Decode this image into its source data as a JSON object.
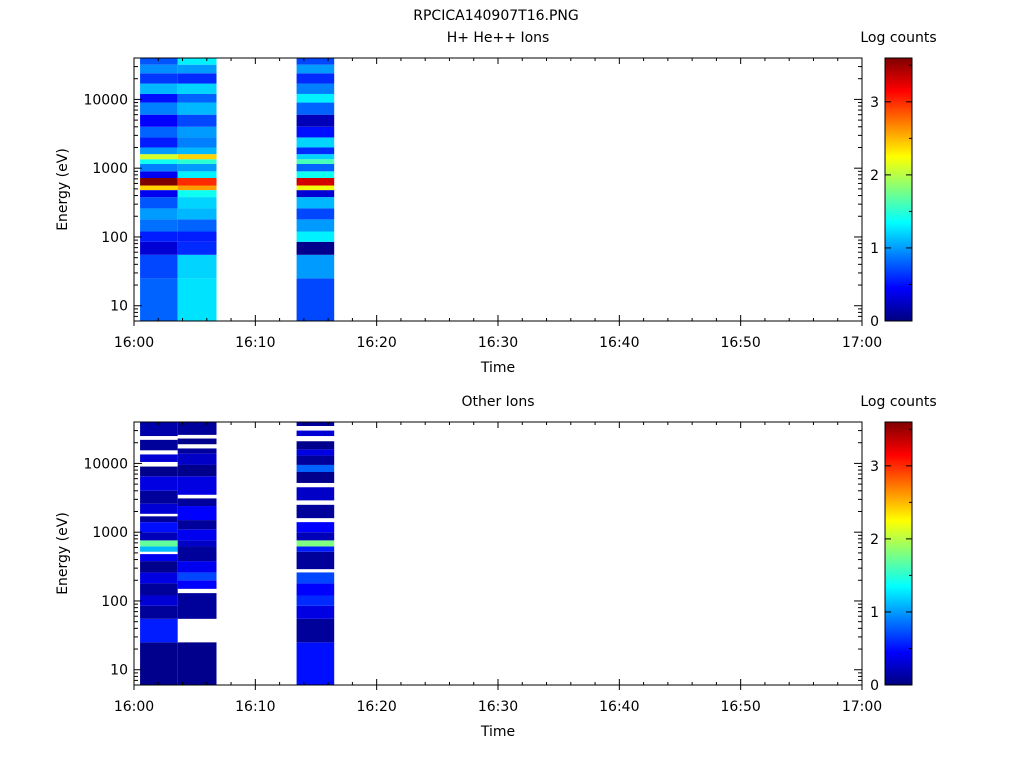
{
  "figure_title": "RPCICA140907T16.PNG",
  "colormap": [
    "#00007f",
    "#0000ff",
    "#007fff",
    "#00ffff",
    "#7fff7f",
    "#ffff00",
    "#ff7f00",
    "#ff0000",
    "#7f0000"
  ],
  "chart_data": [
    {
      "type": "heatmap",
      "title": "H+ He++ Ions",
      "xlabel": "Time",
      "ylabel": "Energy (eV)",
      "yscale": "log",
      "ylim": [
        6,
        40000
      ],
      "xlim": [
        "16:00",
        "17:00"
      ],
      "x_ticks": [
        "16:00",
        "16:10",
        "16:20",
        "16:30",
        "16:40",
        "16:50",
        "17:00"
      ],
      "y_ticks": [
        "10",
        "100",
        "1000",
        "10000"
      ],
      "colorbar": {
        "label": "Log counts",
        "range": [
          0,
          3.6
        ],
        "ticks": [
          "0",
          "1",
          "2",
          "3"
        ]
      },
      "columns": [
        {
          "start": "16:00.5",
          "end": "16:03.6",
          "bins": [
            {
              "lo": 6,
              "hi": 25,
              "v": 0.8
            },
            {
              "lo": 25,
              "hi": 55,
              "v": 0.7
            },
            {
              "lo": 55,
              "hi": 85,
              "v": 0.3
            },
            {
              "lo": 85,
              "hi": 120,
              "v": 0.55
            },
            {
              "lo": 120,
              "hi": 180,
              "v": 0.85
            },
            {
              "lo": 180,
              "hi": 260,
              "v": 1.0
            },
            {
              "lo": 260,
              "hi": 380,
              "v": 0.75
            },
            {
              "lo": 380,
              "hi": 480,
              "v": 0.4
            },
            {
              "lo": 480,
              "hi": 560,
              "v": 2.4
            },
            {
              "lo": 560,
              "hi": 720,
              "v": 3.6
            },
            {
              "lo": 720,
              "hi": 900,
              "v": 0.4
            },
            {
              "lo": 900,
              "hi": 1150,
              "v": 0.9
            },
            {
              "lo": 1150,
              "hi": 1350,
              "v": 1.4
            },
            {
              "lo": 1350,
              "hi": 1600,
              "v": 2.1
            },
            {
              "lo": 1600,
              "hi": 2000,
              "v": 1.0
            },
            {
              "lo": 2000,
              "hi": 2800,
              "v": 0.55
            },
            {
              "lo": 2800,
              "hi": 4000,
              "v": 0.8
            },
            {
              "lo": 4000,
              "hi": 6000,
              "v": 0.45
            },
            {
              "lo": 6000,
              "hi": 9000,
              "v": 0.9
            },
            {
              "lo": 9000,
              "hi": 12000,
              "v": 0.5
            },
            {
              "lo": 12000,
              "hi": 17000,
              "v": 1.1
            },
            {
              "lo": 17000,
              "hi": 24000,
              "v": 0.65
            },
            {
              "lo": 24000,
              "hi": 32000,
              "v": 0.95
            },
            {
              "lo": 32000,
              "hi": 40000,
              "v": 0.75
            }
          ]
        },
        {
          "start": "16:03.6",
          "end": "16:06.8",
          "bins": [
            {
              "lo": 6,
              "hi": 25,
              "v": 1.25
            },
            {
              "lo": 25,
              "hi": 55,
              "v": 1.2
            },
            {
              "lo": 55,
              "hi": 85,
              "v": 0.6
            },
            {
              "lo": 85,
              "hi": 120,
              "v": 0.55
            },
            {
              "lo": 120,
              "hi": 180,
              "v": 0.8
            },
            {
              "lo": 180,
              "hi": 260,
              "v": 1.1
            },
            {
              "lo": 260,
              "hi": 380,
              "v": 1.2
            },
            {
              "lo": 380,
              "hi": 480,
              "v": 1.4
            },
            {
              "lo": 480,
              "hi": 560,
              "v": 2.6
            },
            {
              "lo": 560,
              "hi": 720,
              "v": 3.0
            },
            {
              "lo": 720,
              "hi": 900,
              "v": 1.3
            },
            {
              "lo": 900,
              "hi": 1150,
              "v": 1.0
            },
            {
              "lo": 1150,
              "hi": 1350,
              "v": 1.5
            },
            {
              "lo": 1350,
              "hi": 1600,
              "v": 2.4
            },
            {
              "lo": 1600,
              "hi": 2000,
              "v": 1.1
            },
            {
              "lo": 2000,
              "hi": 2800,
              "v": 0.9
            },
            {
              "lo": 2800,
              "hi": 4000,
              "v": 1.0
            },
            {
              "lo": 4000,
              "hi": 6000,
              "v": 0.7
            },
            {
              "lo": 6000,
              "hi": 9000,
              "v": 1.1
            },
            {
              "lo": 9000,
              "hi": 12000,
              "v": 0.8
            },
            {
              "lo": 12000,
              "hi": 17000,
              "v": 1.2
            },
            {
              "lo": 17000,
              "hi": 24000,
              "v": 0.6
            },
            {
              "lo": 24000,
              "hi": 32000,
              "v": 1.0
            },
            {
              "lo": 32000,
              "hi": 40000,
              "v": 1.3
            }
          ]
        },
        {
          "start": "16:13.4",
          "end": "16:16.5",
          "bins": [
            {
              "lo": 6,
              "hi": 25,
              "v": 0.7
            },
            {
              "lo": 25,
              "hi": 55,
              "v": 1.0
            },
            {
              "lo": 55,
              "hi": 85,
              "v": 0.05
            },
            {
              "lo": 85,
              "hi": 120,
              "v": 1.3
            },
            {
              "lo": 120,
              "hi": 180,
              "v": 1.0
            },
            {
              "lo": 180,
              "hi": 260,
              "v": 0.7
            },
            {
              "lo": 260,
              "hi": 380,
              "v": 1.1
            },
            {
              "lo": 380,
              "hi": 480,
              "v": 0.3
            },
            {
              "lo": 480,
              "hi": 560,
              "v": 2.2
            },
            {
              "lo": 560,
              "hi": 720,
              "v": 3.3
            },
            {
              "lo": 720,
              "hi": 900,
              "v": 1.4
            },
            {
              "lo": 900,
              "hi": 1150,
              "v": 0.8
            },
            {
              "lo": 1150,
              "hi": 1350,
              "v": 1.6
            },
            {
              "lo": 1350,
              "hi": 1600,
              "v": 1.2
            },
            {
              "lo": 1600,
              "hi": 2000,
              "v": 0.6
            },
            {
              "lo": 2000,
              "hi": 2800,
              "v": 1.2
            },
            {
              "lo": 2800,
              "hi": 4000,
              "v": 0.5
            },
            {
              "lo": 4000,
              "hi": 6000,
              "v": 0.2
            },
            {
              "lo": 6000,
              "hi": 9000,
              "v": 0.8
            },
            {
              "lo": 9000,
              "hi": 12000,
              "v": 1.3
            },
            {
              "lo": 12000,
              "hi": 17000,
              "v": 0.9
            },
            {
              "lo": 17000,
              "hi": 24000,
              "v": 0.6
            },
            {
              "lo": 24000,
              "hi": 32000,
              "v": 1.0
            },
            {
              "lo": 32000,
              "hi": 40000,
              "v": 0.7
            }
          ]
        }
      ]
    },
    {
      "type": "heatmap",
      "title": "Other Ions",
      "xlabel": "Time",
      "ylabel": "Energy (eV)",
      "yscale": "log",
      "ylim": [
        6,
        40000
      ],
      "xlim": [
        "16:00",
        "17:00"
      ],
      "x_ticks": [
        "16:00",
        "16:10",
        "16:20",
        "16:30",
        "16:40",
        "16:50",
        "17:00"
      ],
      "y_ticks": [
        "10",
        "100",
        "1000",
        "10000"
      ],
      "colorbar": {
        "label": "Log counts",
        "range": [
          0,
          3.6
        ],
        "ticks": [
          "0",
          "1",
          "2",
          "3"
        ]
      },
      "columns": [
        {
          "start": "16:00.5",
          "end": "16:03.6",
          "bins": [
            {
              "lo": 6,
              "hi": 25,
              "v": 0.05
            },
            {
              "lo": 25,
              "hi": 55,
              "v": 0.55
            },
            {
              "lo": 55,
              "hi": 85,
              "v": 0.1
            },
            {
              "lo": 85,
              "hi": 120,
              "v": 0.3
            },
            {
              "lo": 120,
              "hi": 180,
              "v": 0.1
            },
            {
              "lo": 180,
              "hi": 260,
              "v": 0.35
            },
            {
              "lo": 260,
              "hi": 380,
              "v": 0.05
            },
            {
              "lo": 380,
              "hi": 480,
              "v": 0.4
            },
            {
              "lo": 480,
              "hi": 520,
              "v": null
            },
            {
              "lo": 520,
              "hi": 620,
              "v": 1.1
            },
            {
              "lo": 620,
              "hi": 760,
              "v": 1.7
            },
            {
              "lo": 760,
              "hi": 1000,
              "v": 0.2
            },
            {
              "lo": 1000,
              "hi": 1400,
              "v": 0.5
            },
            {
              "lo": 1400,
              "hi": 1700,
              "v": 0.1
            },
            {
              "lo": 1700,
              "hi": 1850,
              "v": null
            },
            {
              "lo": 1850,
              "hi": 2600,
              "v": 0.3
            },
            {
              "lo": 2600,
              "hi": 4000,
              "v": 0.1
            },
            {
              "lo": 4000,
              "hi": 6500,
              "v": 0.35
            },
            {
              "lo": 6500,
              "hi": 9000,
              "v": 0.05
            },
            {
              "lo": 9000,
              "hi": 10500,
              "v": null
            },
            {
              "lo": 10500,
              "hi": 13500,
              "v": 0.3
            },
            {
              "lo": 13500,
              "hi": 15500,
              "v": null
            },
            {
              "lo": 15500,
              "hi": 22000,
              "v": 0.1
            },
            {
              "lo": 22000,
              "hi": 25000,
              "v": null
            },
            {
              "lo": 25000,
              "hi": 40000,
              "v": 0.15
            }
          ]
        },
        {
          "start": "16:03.6",
          "end": "16:06.8",
          "bins": [
            {
              "lo": 6,
              "hi": 25,
              "v": 0.05
            },
            {
              "lo": 25,
              "hi": 55,
              "v": null
            },
            {
              "lo": 55,
              "hi": 130,
              "v": 0.1
            },
            {
              "lo": 130,
              "hi": 150,
              "v": null
            },
            {
              "lo": 150,
              "hi": 200,
              "v": 0.45
            },
            {
              "lo": 200,
              "hi": 260,
              "v": 0.7
            },
            {
              "lo": 260,
              "hi": 380,
              "v": 0.4
            },
            {
              "lo": 380,
              "hi": 620,
              "v": 0.1
            },
            {
              "lo": 620,
              "hi": 760,
              "v": 0.25
            },
            {
              "lo": 760,
              "hi": 1100,
              "v": 0.4
            },
            {
              "lo": 1100,
              "hi": 1500,
              "v": 0.1
            },
            {
              "lo": 1500,
              "hi": 2400,
              "v": 0.45
            },
            {
              "lo": 2400,
              "hi": 3100,
              "v": 0.1
            },
            {
              "lo": 3100,
              "hi": 3500,
              "v": null
            },
            {
              "lo": 3500,
              "hi": 6500,
              "v": 0.35
            },
            {
              "lo": 6500,
              "hi": 9500,
              "v": 0.05
            },
            {
              "lo": 9500,
              "hi": 14000,
              "v": 0.25
            },
            {
              "lo": 14000,
              "hi": 16500,
              "v": 0.1
            },
            {
              "lo": 16500,
              "hi": 19000,
              "v": null
            },
            {
              "lo": 19000,
              "hi": 23000,
              "v": 0.05
            },
            {
              "lo": 23000,
              "hi": 26000,
              "v": null
            },
            {
              "lo": 26000,
              "hi": 40000,
              "v": 0.1
            }
          ]
        },
        {
          "start": "16:13.4",
          "end": "16:16.5",
          "bins": [
            {
              "lo": 6,
              "hi": 25,
              "v": 0.5
            },
            {
              "lo": 25,
              "hi": 55,
              "v": 0.1
            },
            {
              "lo": 55,
              "hi": 85,
              "v": 0.35
            },
            {
              "lo": 85,
              "hi": 120,
              "v": 0.6
            },
            {
              "lo": 120,
              "hi": 180,
              "v": 0.45
            },
            {
              "lo": 180,
              "hi": 260,
              "v": 0.7
            },
            {
              "lo": 260,
              "hi": 290,
              "v": null
            },
            {
              "lo": 290,
              "hi": 520,
              "v": 0.1
            },
            {
              "lo": 520,
              "hi": 620,
              "v": 0.55
            },
            {
              "lo": 620,
              "hi": 760,
              "v": 1.8
            },
            {
              "lo": 760,
              "hi": 1000,
              "v": 0.2
            },
            {
              "lo": 1000,
              "hi": 1400,
              "v": 0.45
            },
            {
              "lo": 1400,
              "hi": 1600,
              "v": null
            },
            {
              "lo": 1600,
              "hi": 2500,
              "v": 0.1
            },
            {
              "lo": 2500,
              "hi": 2900,
              "v": null
            },
            {
              "lo": 2900,
              "hi": 4500,
              "v": 0.25
            },
            {
              "lo": 4500,
              "hi": 5200,
              "v": null
            },
            {
              "lo": 5200,
              "hi": 7500,
              "v": 0.05
            },
            {
              "lo": 7500,
              "hi": 9500,
              "v": 0.8
            },
            {
              "lo": 9500,
              "hi": 13000,
              "v": 0.1
            },
            {
              "lo": 13000,
              "hi": 16000,
              "v": 0.35
            },
            {
              "lo": 16000,
              "hi": 21000,
              "v": 0.05
            },
            {
              "lo": 21000,
              "hi": 25000,
              "v": null
            },
            {
              "lo": 25000,
              "hi": 30000,
              "v": 0.3
            },
            {
              "lo": 30000,
              "hi": 35000,
              "v": null
            },
            {
              "lo": 35000,
              "hi": 40000,
              "v": 0.1
            }
          ]
        }
      ]
    }
  ]
}
